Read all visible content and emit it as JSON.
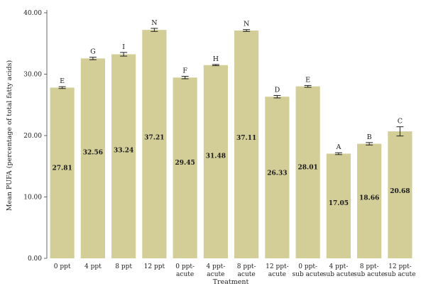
{
  "chart_data": {
    "type": "bar",
    "xlabel": "Treatment",
    "ylabel": "Mean PUFA (percentage of total fatty acids)",
    "ylim": [
      0,
      40
    ],
    "yticks": [
      "0.00",
      "10.00",
      "20.00",
      "30.00",
      "40.00"
    ],
    "bar_color": "#d3cd98",
    "categories": [
      [
        "0 ppt"
      ],
      [
        "4 ppt"
      ],
      [
        "8 ppt"
      ],
      [
        "12 ppt"
      ],
      [
        "0 ppt-",
        "acute"
      ],
      [
        "4 ppt-",
        "acute"
      ],
      [
        "8 ppt-",
        "acute"
      ],
      [
        "12 ppt-",
        "acute"
      ],
      [
        "0 ppt-",
        "sub acute"
      ],
      [
        "4 ppt-",
        "sub acute"
      ],
      [
        "8 ppt-",
        "sub acute"
      ],
      [
        "12 ppt-",
        "sub acute"
      ]
    ],
    "values": [
      27.81,
      32.56,
      33.24,
      37.21,
      29.45,
      31.48,
      37.11,
      26.33,
      28.01,
      17.05,
      18.66,
      20.68
    ],
    "value_labels": [
      "27.81",
      "32.56",
      "33.24",
      "37.21",
      "29.45",
      "31.48",
      "37.11",
      "26.33",
      "28.01",
      "17.05",
      "18.66",
      "20.68"
    ],
    "errors": [
      0.15,
      0.2,
      0.3,
      0.25,
      0.2,
      0.1,
      0.15,
      0.2,
      0.15,
      0.15,
      0.2,
      0.75
    ],
    "letters": [
      "E",
      "G",
      "I",
      "N",
      "F",
      "H",
      "N",
      "D",
      "E",
      "A",
      "B",
      "C"
    ]
  }
}
